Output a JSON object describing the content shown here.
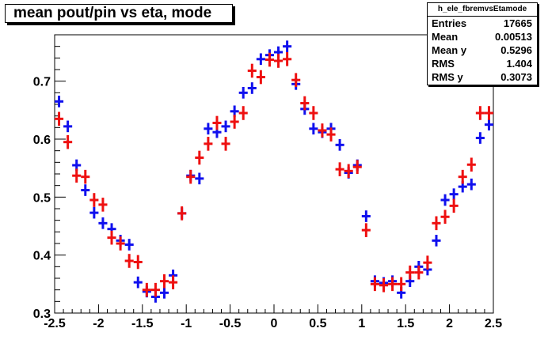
{
  "title": "mean pout/pin vs eta, mode",
  "stats": {
    "name": "h_ele_fbremvsEtamode",
    "rows": [
      {
        "label": "Entries",
        "value": "17665"
      },
      {
        "label": "Mean",
        "value": "0.00513"
      },
      {
        "label": "Mean y",
        "value": "0.5296"
      },
      {
        "label": "RMS",
        "value": "1.404"
      },
      {
        "label": "RMS y",
        "value": "0.3073"
      }
    ]
  },
  "colors": {
    "series_blue": "#1010ee",
    "series_red": "#ee1010",
    "axis": "#000000"
  },
  "chart_data": {
    "type": "scatter",
    "title": "mean pout/pin vs eta, mode",
    "xlabel": "",
    "ylabel": "",
    "xlim": [
      -2.5,
      2.5
    ],
    "ylim": [
      0.3,
      0.78
    ],
    "x_ticks": [
      "-2.5",
      "-2",
      "-1.5",
      "-1",
      "-0.5",
      "0",
      "0.5",
      "1",
      "1.5",
      "2",
      "2.5"
    ],
    "y_ticks": [
      "0.3",
      "0.4",
      "0.5",
      "0.6",
      "0.7"
    ],
    "x_error": 0.05,
    "series": [
      {
        "color": "#1010ee",
        "x": [
          -2.45,
          -2.35,
          -2.25,
          -2.15,
          -2.05,
          -1.95,
          -1.85,
          -1.75,
          -1.65,
          -1.55,
          -1.45,
          -1.35,
          -1.25,
          -1.15,
          -1.05,
          -0.95,
          -0.85,
          -0.75,
          -0.65,
          -0.55,
          -0.45,
          -0.35,
          -0.25,
          -0.15,
          -0.05,
          0.05,
          0.15,
          0.25,
          0.35,
          0.45,
          0.55,
          0.65,
          0.75,
          0.85,
          0.95,
          1.05,
          1.15,
          1.25,
          1.35,
          1.45,
          1.55,
          1.65,
          1.75,
          1.85,
          1.95,
          2.05,
          2.15,
          2.25,
          2.35,
          2.45
        ],
        "y": [
          0.665,
          0.622,
          0.555,
          0.512,
          0.473,
          0.455,
          0.445,
          0.425,
          0.418,
          0.353,
          0.337,
          0.328,
          0.335,
          0.365,
          0.472,
          0.537,
          0.532,
          0.618,
          0.612,
          0.622,
          0.648,
          0.68,
          0.688,
          0.738,
          0.745,
          0.75,
          0.76,
          0.695,
          0.652,
          0.618,
          0.612,
          0.618,
          0.59,
          0.542,
          0.555,
          0.467,
          0.355,
          0.352,
          0.355,
          0.335,
          0.355,
          0.38,
          0.375,
          0.425,
          0.495,
          0.505,
          0.518,
          0.522,
          0.602,
          0.625
        ],
        "y_err": [
          0.01,
          0.01,
          0.01,
          0.01,
          0.01,
          0.01,
          0.01,
          0.01,
          0.01,
          0.01,
          0.01,
          0.01,
          0.01,
          0.01,
          0.01,
          0.01,
          0.01,
          0.01,
          0.01,
          0.01,
          0.01,
          0.01,
          0.01,
          0.01,
          0.01,
          0.01,
          0.01,
          0.01,
          0.01,
          0.01,
          0.01,
          0.01,
          0.01,
          0.01,
          0.01,
          0.01,
          0.01,
          0.01,
          0.01,
          0.01,
          0.01,
          0.01,
          0.01,
          0.01,
          0.01,
          0.01,
          0.01,
          0.01,
          0.01,
          0.01
        ]
      },
      {
        "color": "#ee1010",
        "x": [
          -2.45,
          -2.35,
          -2.25,
          -2.15,
          -2.05,
          -1.95,
          -1.85,
          -1.75,
          -1.65,
          -1.55,
          -1.45,
          -1.35,
          -1.25,
          -1.15,
          -1.05,
          -0.95,
          -0.85,
          -0.75,
          -0.65,
          -0.55,
          -0.45,
          -0.35,
          -0.25,
          -0.15,
          -0.05,
          0.05,
          0.15,
          0.25,
          0.35,
          0.45,
          0.55,
          0.65,
          0.75,
          0.85,
          0.95,
          1.05,
          1.15,
          1.25,
          1.35,
          1.45,
          1.55,
          1.65,
          1.75,
          1.85,
          1.95,
          2.05,
          2.15,
          2.25,
          2.35,
          2.45
        ],
        "y": [
          0.635,
          0.595,
          0.537,
          0.535,
          0.495,
          0.487,
          0.43,
          0.42,
          0.39,
          0.388,
          0.34,
          0.34,
          0.355,
          0.353,
          0.472,
          0.535,
          0.568,
          0.592,
          0.628,
          0.592,
          0.63,
          0.645,
          0.718,
          0.707,
          0.737,
          0.735,
          0.738,
          0.702,
          0.662,
          0.645,
          0.615,
          0.608,
          0.548,
          0.545,
          0.552,
          0.443,
          0.35,
          0.348,
          0.35,
          0.35,
          0.37,
          0.37,
          0.387,
          0.455,
          0.466,
          0.485,
          0.535,
          0.556,
          0.645,
          0.645
        ],
        "y_err": [
          0.012,
          0.012,
          0.012,
          0.012,
          0.012,
          0.012,
          0.012,
          0.012,
          0.012,
          0.012,
          0.012,
          0.012,
          0.012,
          0.012,
          0.012,
          0.012,
          0.012,
          0.012,
          0.012,
          0.012,
          0.012,
          0.012,
          0.012,
          0.012,
          0.012,
          0.012,
          0.012,
          0.012,
          0.012,
          0.012,
          0.012,
          0.012,
          0.012,
          0.012,
          0.012,
          0.012,
          0.012,
          0.012,
          0.012,
          0.012,
          0.012,
          0.012,
          0.012,
          0.012,
          0.012,
          0.012,
          0.012,
          0.012,
          0.012,
          0.012
        ]
      }
    ]
  }
}
